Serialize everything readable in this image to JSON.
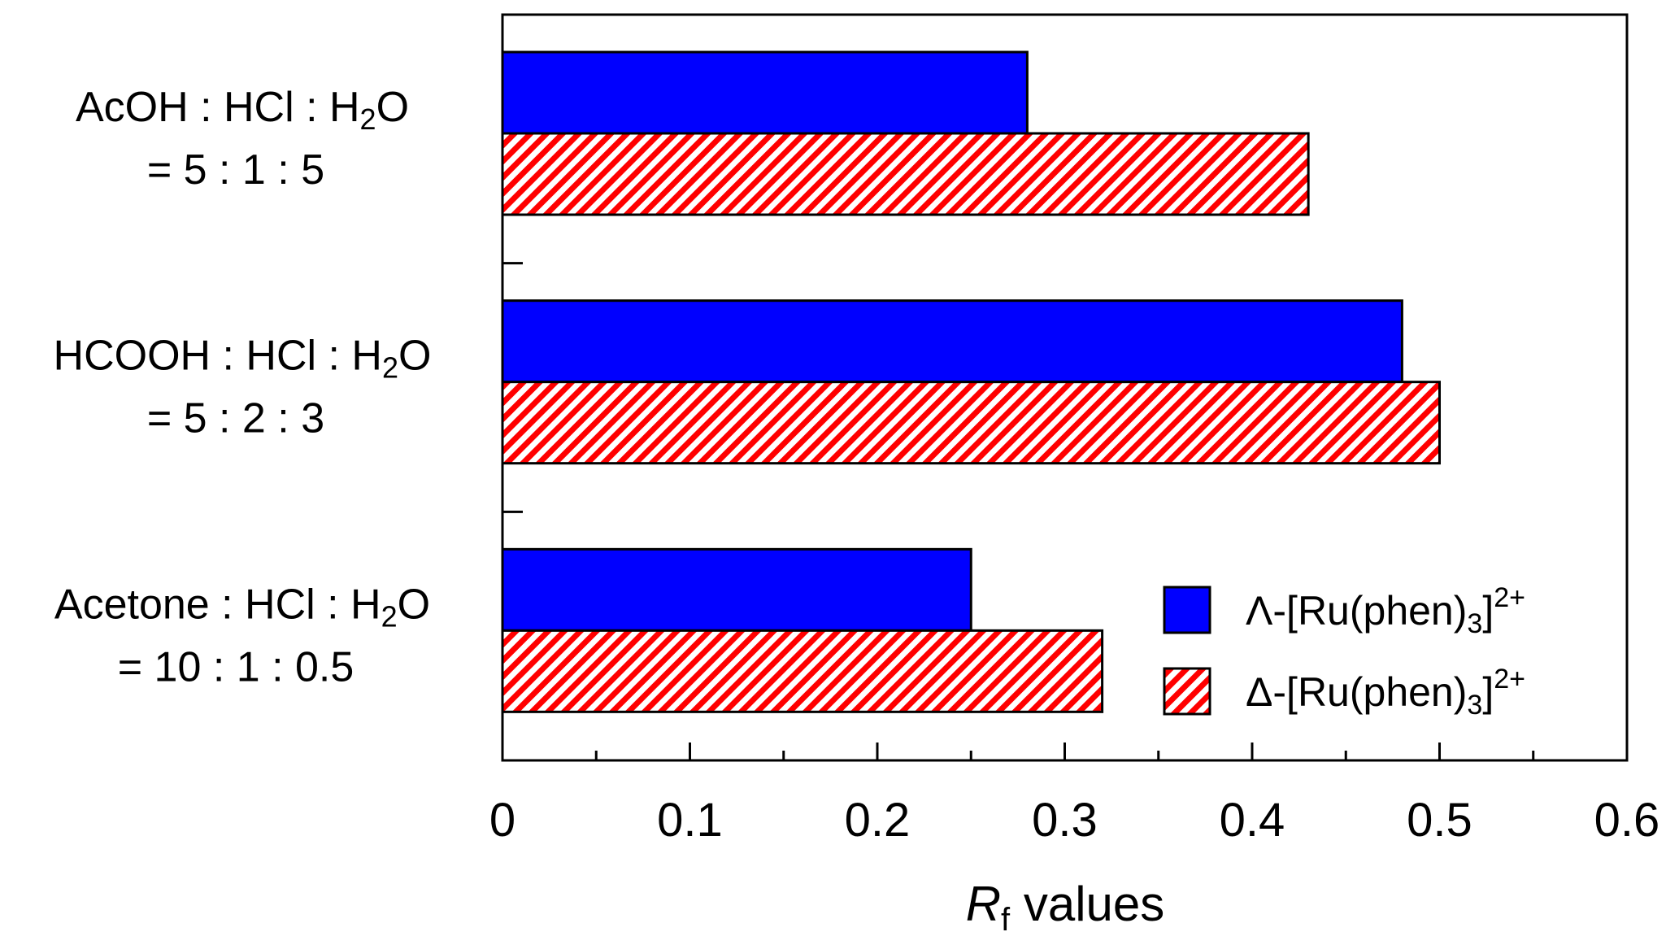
{
  "chart_data": {
    "type": "bar",
    "orientation": "horizontal",
    "title": "",
    "categories": [
      {
        "line1": {
          "pre": "AcOH : HCl : H",
          "sub": "2",
          "post": "O"
        },
        "line2": "= 5 : 1 : 5"
      },
      {
        "line1": {
          "pre": "HCOOH : HCl : H",
          "sub": "2",
          "post": "O"
        },
        "line2": "= 5 : 2 : 3"
      },
      {
        "line1": {
          "pre": "Acetone : HCl : H",
          "sub": "2",
          "post": "O"
        },
        "line2": "= 10 : 1 : 0.5"
      }
    ],
    "series": [
      {
        "name": "Λ-[Ru(phen)3]2+",
        "label_pre": "Λ-[Ru(phen)",
        "label_sub": "3",
        "label_post": "]",
        "label_sup": "2+",
        "values": [
          0.28,
          0.48,
          0.25
        ],
        "color": "#0000ff",
        "pattern": "solid"
      },
      {
        "name": "Δ-[Ru(phen)3]2+",
        "label_pre": "Δ-[Ru(phen)",
        "label_sub": "3",
        "label_post": "]",
        "label_sup": "2+",
        "values": [
          0.43,
          0.5,
          0.32
        ],
        "color": "#ff0000",
        "pattern": "hatched"
      }
    ],
    "xlabel": {
      "italic": "R",
      "sub": "f",
      "rest": " values"
    },
    "ylabel": "",
    "xlim": [
      0,
      0.6
    ],
    "xticks": [
      "0",
      "0.1",
      "0.2",
      "0.3",
      "0.4",
      "0.5",
      "0.6"
    ],
    "grid": false,
    "legend_position": "bottom-right"
  }
}
